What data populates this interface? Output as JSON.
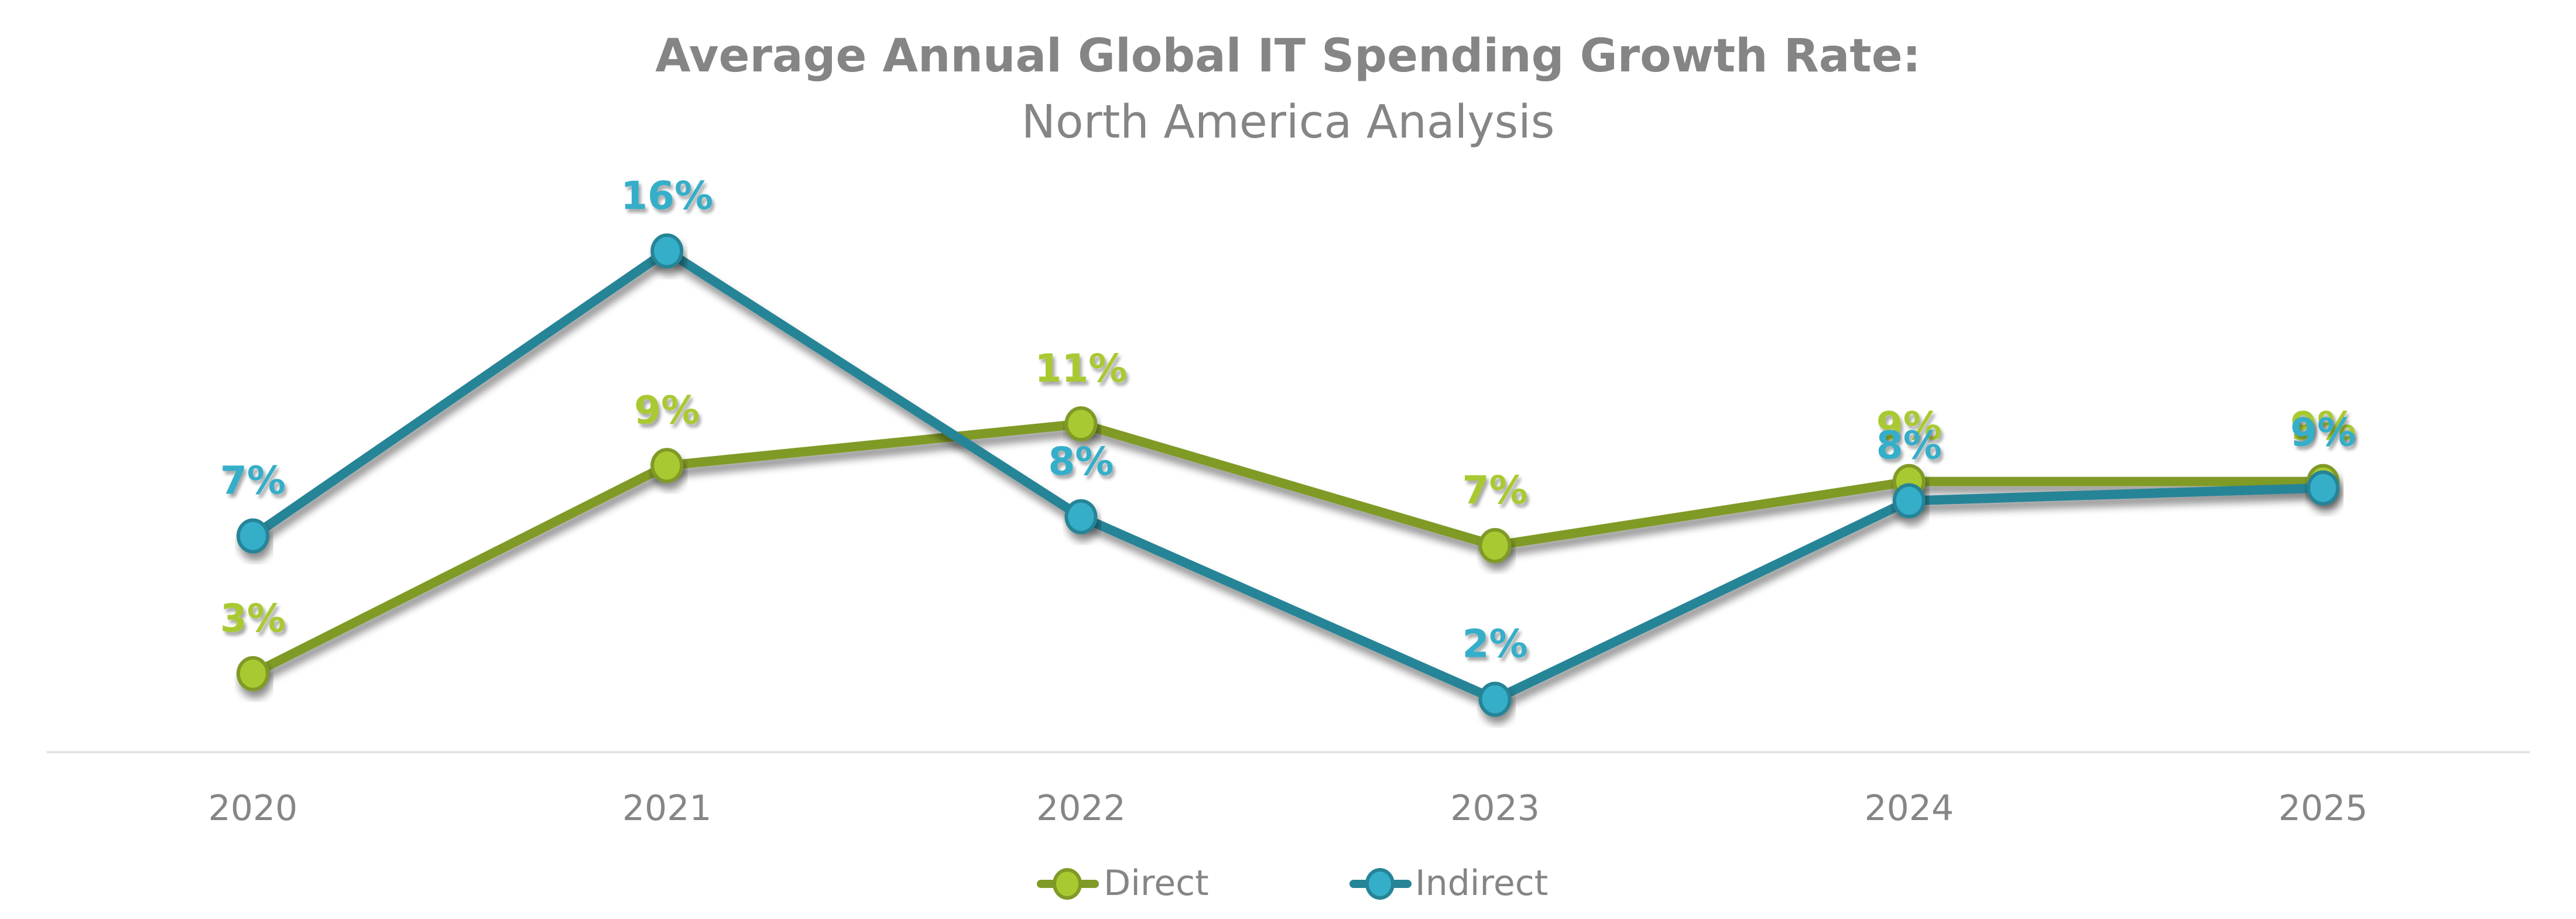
{
  "chart_data": {
    "type": "line",
    "title": "Average Annual Global IT Spending Growth Rate:",
    "subtitle": "North America Analysis",
    "xlabel": "",
    "ylabel": "",
    "categories": [
      "2020",
      "2021",
      "2022",
      "2023",
      "2024",
      "2025"
    ],
    "ylim": [
      0,
      17
    ],
    "grid": false,
    "legend_position": "bottom-center",
    "series": [
      {
        "name": "Direct",
        "values": [
          2.8,
          9.3,
          10.6,
          6.8,
          8.8,
          8.8
        ],
        "labels": [
          "3%",
          "9%",
          "11%",
          "7%",
          "9%",
          "9%"
        ],
        "color": "#a9c931",
        "stroke_color": "#809a27"
      },
      {
        "name": "Indirect",
        "values": [
          7.1,
          16.0,
          7.7,
          2.0,
          8.2,
          8.6
        ],
        "labels": [
          "7%",
          "16%",
          "8%",
          "2%",
          "8%",
          "9%"
        ],
        "color": "#35aec9",
        "stroke_color": "#268497"
      }
    ]
  },
  "colors": {
    "text": "#858585",
    "axis_line": "#e3e3e3"
  }
}
